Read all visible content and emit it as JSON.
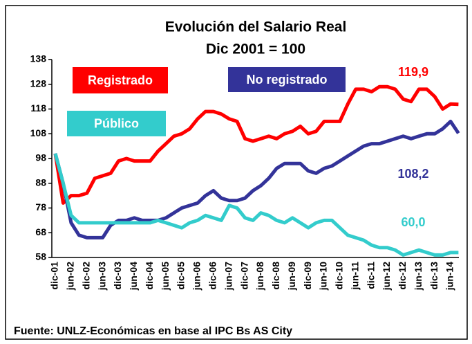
{
  "chart_data": {
    "type": "line",
    "title": "Evolución del Salario Real",
    "subtitle": "Dic 2001 = 100",
    "footnote": "Fuente: UNLZ-Económicas  en base al IPC Bs AS City",
    "categories": [
      "dic-01",
      null,
      "jun-02",
      null,
      "dic-02",
      null,
      "jun-03",
      null,
      "dic-03",
      null,
      "jun-04",
      null,
      "dic-04",
      null,
      "jun-05",
      null,
      "dic-05",
      null,
      "jun-06",
      null,
      "dic-06",
      null,
      "jun-07",
      null,
      "dic-07",
      null,
      "jun-08",
      null,
      "dic-08",
      null,
      "jun-09",
      null,
      "dic-09",
      null,
      "jun-10",
      null,
      "dic-10",
      null,
      "jun-11",
      null,
      "dic-11",
      null,
      "jun-12",
      null,
      "dic-12",
      null,
      "jun-13",
      null,
      "dic-13",
      null,
      "jun-14",
      null
    ],
    "series": [
      {
        "name": "Registrado",
        "color": "#ff0000",
        "last_label": "119,9",
        "values": [
          100,
          80,
          83,
          83,
          84,
          90,
          91,
          92,
          97,
          98,
          97,
          97,
          97,
          101,
          104,
          107,
          108,
          110,
          114,
          117,
          117,
          116,
          114,
          113,
          106,
          105,
          106,
          107,
          106,
          108,
          109,
          111,
          108,
          109,
          113,
          113,
          113,
          120,
          126,
          126,
          125,
          127,
          127,
          126,
          122,
          121,
          126,
          126,
          123,
          118,
          120,
          119.9
        ]
      },
      {
        "name": "No registrado",
        "color": "#333399",
        "last_label": "108,2",
        "values": [
          100,
          88,
          72,
          67,
          66,
          66,
          66,
          71,
          73,
          73,
          74,
          73,
          73,
          73,
          74,
          76,
          78,
          79,
          80,
          83,
          85,
          82,
          81,
          81,
          82,
          85,
          87,
          90,
          94,
          96,
          96,
          96,
          93,
          92,
          94,
          95,
          97,
          99,
          101,
          103,
          104,
          104,
          105,
          106,
          107,
          106,
          107,
          108,
          108,
          110,
          113,
          108.2
        ]
      },
      {
        "name": "Público",
        "color": "#33cccc",
        "last_label": "60,0",
        "values": [
          100,
          88,
          75,
          72,
          72,
          72,
          72,
          72,
          72,
          72,
          72,
          72,
          72,
          73,
          72,
          71,
          70,
          72,
          73,
          75,
          74,
          73,
          79,
          78,
          74,
          73,
          76,
          75,
          73,
          72,
          74,
          72,
          70,
          72,
          73,
          73,
          70,
          67,
          66,
          65,
          63,
          62,
          62,
          61,
          59,
          60,
          61,
          60,
          59,
          59,
          60,
          60.0
        ]
      }
    ],
    "ylim": [
      58,
      138
    ],
    "yticks": [
      58,
      68,
      78,
      88,
      98,
      108,
      118,
      128,
      138
    ]
  }
}
